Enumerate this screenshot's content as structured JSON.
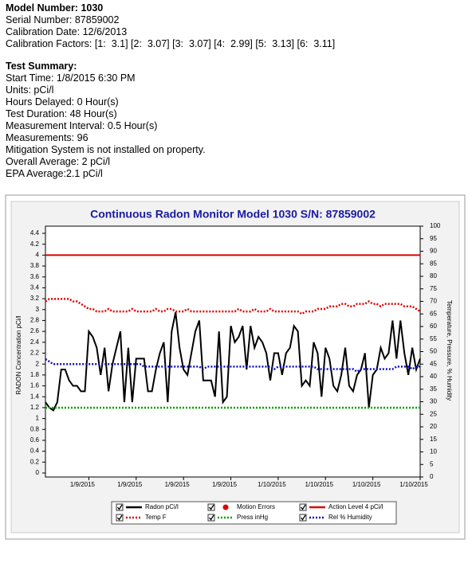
{
  "header": {
    "model": "Model Number: 1030",
    "serial": "Serial Number: 87859002",
    "calibration_date": "Calibration Date: 12/6/2013",
    "calibration_factors": "Calibration Factors: [1:  3.1] [2:  3.07] [3:  3.07] [4:  2.99] [5:  3.13] [6:  3.11]"
  },
  "summary": {
    "title": "Test Summary:",
    "lines": [
      "Start Time: 1/8/2015 6:30 PM",
      "Units: pCi/l",
      "Hours Delayed: 0 Hour(s)",
      "Test Duration: 48 Hour(s)",
      "Measurement Interval: 0.5 Hour(s)",
      "Measurements: 96",
      "Mitigation System is not installed on property.",
      "Overall Average: 2 pCi/l",
      "EPA Average:2.1 pCi/l"
    ]
  },
  "chart_data": {
    "type": "line",
    "title": "Continuous Radon Monitor Model 1030 S/N: 87859002",
    "y_label": "RADON Concentration pCi/l",
    "y2_label": "Temperature, Pressure, % Humidity",
    "xlim": [
      0,
      95
    ],
    "xticks": [
      {
        "value": 11,
        "label": "1/9/2015"
      },
      {
        "value": 23,
        "label": "1/9/2015"
      },
      {
        "value": 35,
        "label": "1/9/2015"
      },
      {
        "value": 47,
        "label": "1/9/2015"
      },
      {
        "value": 59,
        "label": "1/10/2015"
      },
      {
        "value": 71,
        "label": "1/10/2015"
      },
      {
        "value": 83,
        "label": "1/10/2015"
      },
      {
        "value": 95,
        "label": "1/10/2015"
      }
    ],
    "ylim": [
      0,
      4.4
    ],
    "yticks": [
      0,
      0.2,
      0.4,
      0.6,
      0.8,
      1,
      1.2,
      1.4,
      1.6,
      1.8,
      2,
      2.2,
      2.4,
      2.6,
      2.8,
      3,
      3.2,
      3.4,
      3.6,
      3.8,
      4,
      4.2,
      4.4
    ],
    "y2lim": [
      0,
      100
    ],
    "y2ticks": [
      0,
      5,
      10,
      15,
      20,
      25,
      30,
      35,
      40,
      45,
      50,
      55,
      60,
      65,
      70,
      75,
      80,
      85,
      90,
      95,
      100
    ],
    "action_level": {
      "name": "Action Level 4 pCi/l",
      "value": 4,
      "color": "#e00000"
    },
    "motion_errors": {
      "name": "Motion Errors",
      "color": "#e00000"
    },
    "series": [
      {
        "name": "Radon pCi/l",
        "color": "#000000",
        "values": [
          1.3,
          1.2,
          1.15,
          1.3,
          1.9,
          1.9,
          1.7,
          1.6,
          1.6,
          1.5,
          1.5,
          2.6,
          2.5,
          2.3,
          1.8,
          2.3,
          1.5,
          2.0,
          2.3,
          2.6,
          1.3,
          2.3,
          1.3,
          2.1,
          2.1,
          2.1,
          1.5,
          1.5,
          1.9,
          2.2,
          2.4,
          1.3,
          2.6,
          2.95,
          2.3,
          1.9,
          1.8,
          2.2,
          2.6,
          2.8,
          1.7,
          1.7,
          1.7,
          1.4,
          2.6,
          1.3,
          1.4,
          2.7,
          2.4,
          2.5,
          2.7,
          1.9,
          2.7,
          2.3,
          2.5,
          2.4,
          2.2,
          1.7,
          2.2,
          2.2,
          1.8,
          2.2,
          2.3,
          2.7,
          2.6,
          1.6,
          1.7,
          1.6,
          2.4,
          2.2,
          1.4,
          2.3,
          2.1,
          1.6,
          1.5,
          1.8,
          2.3,
          1.6,
          1.5,
          1.8,
          1.9,
          2.2,
          1.2,
          1.8,
          1.9,
          2.3,
          2.1,
          2.2,
          2.8,
          2.1,
          2.8,
          2.2,
          1.8,
          2.3,
          1.9,
          2.1
        ]
      },
      {
        "name": "Temp F",
        "color": "#e00000",
        "axis": "y2",
        "values": [
          70,
          71,
          71,
          71,
          71,
          71,
          71,
          70,
          70,
          69,
          68,
          67,
          67,
          66,
          66,
          66,
          67,
          66,
          66,
          66,
          66,
          66,
          67,
          66,
          66,
          66,
          66,
          66,
          67,
          66,
          66,
          67,
          67,
          66,
          66,
          66,
          67,
          66,
          66,
          66,
          66,
          66,
          66,
          66,
          66,
          66,
          66,
          66,
          66,
          67,
          66,
          66,
          66,
          67,
          66,
          66,
          66,
          67,
          66,
          66,
          66,
          66,
          66,
          66,
          66,
          65,
          66,
          66,
          66,
          67,
          67,
          67,
          68,
          68,
          68,
          69,
          69,
          68,
          68,
          69,
          69,
          69,
          70,
          69,
          69,
          68,
          69,
          69,
          69,
          69,
          69,
          68,
          68,
          68,
          67,
          66
        ]
      },
      {
        "name": "Press inHg",
        "color": "#00a000",
        "axis": "y2",
        "values": [
          27.6,
          27.6,
          27.6,
          27.6,
          27.6,
          27.6,
          27.6,
          27.6,
          27.6,
          27.6,
          27.6,
          27.6,
          27.6,
          27.6,
          27.6,
          27.6,
          27.6,
          27.6,
          27.6,
          27.6,
          27.6,
          27.6,
          27.6,
          27.6,
          27.6,
          27.6,
          27.6,
          27.6,
          27.6,
          27.6,
          27.6,
          27.6,
          27.6,
          27.6,
          27.6,
          27.6,
          27.6,
          27.6,
          27.6,
          27.6,
          27.6,
          27.6,
          27.6,
          27.6,
          27.6,
          27.6,
          27.6,
          27.6,
          27.6,
          27.6,
          27.6,
          27.6,
          27.6,
          27.6,
          27.6,
          27.6,
          27.6,
          27.6,
          27.6,
          27.6,
          27.6,
          27.6,
          27.6,
          27.6,
          27.6,
          27.6,
          27.6,
          27.6,
          27.6,
          27.6,
          27.6,
          27.6,
          27.6,
          27.6,
          27.6,
          27.6,
          27.6,
          27.6,
          27.6,
          27.6,
          27.6,
          27.6,
          27.6,
          27.6,
          27.6,
          27.6,
          27.6,
          27.6,
          27.6,
          27.6,
          27.6,
          27.6,
          27.6,
          27.6,
          27.6,
          27.6
        ]
      },
      {
        "name": "Rel % Humidity",
        "color": "#1010c0",
        "axis": "y2",
        "values": [
          47,
          46,
          45,
          45,
          45,
          45,
          45,
          45,
          45,
          45,
          45,
          45,
          45,
          45,
          45,
          45,
          45,
          45,
          45,
          45,
          45,
          45,
          45,
          45,
          45,
          44,
          44,
          44,
          44,
          44,
          44,
          44,
          44,
          44,
          44,
          44,
          44,
          44,
          44,
          44,
          43,
          44,
          44,
          44,
          44,
          44,
          44,
          44,
          44,
          44,
          44,
          44,
          44,
          44,
          44,
          44,
          44,
          44,
          43,
          44,
          44,
          44,
          44,
          44,
          44,
          44,
          44,
          44,
          44,
          43,
          43,
          43,
          43,
          43,
          43,
          43,
          43,
          43,
          43,
          42,
          43,
          43,
          43,
          43,
          43,
          43,
          43,
          43,
          43,
          44,
          44,
          44,
          44,
          43,
          44,
          44
        ]
      }
    ]
  }
}
